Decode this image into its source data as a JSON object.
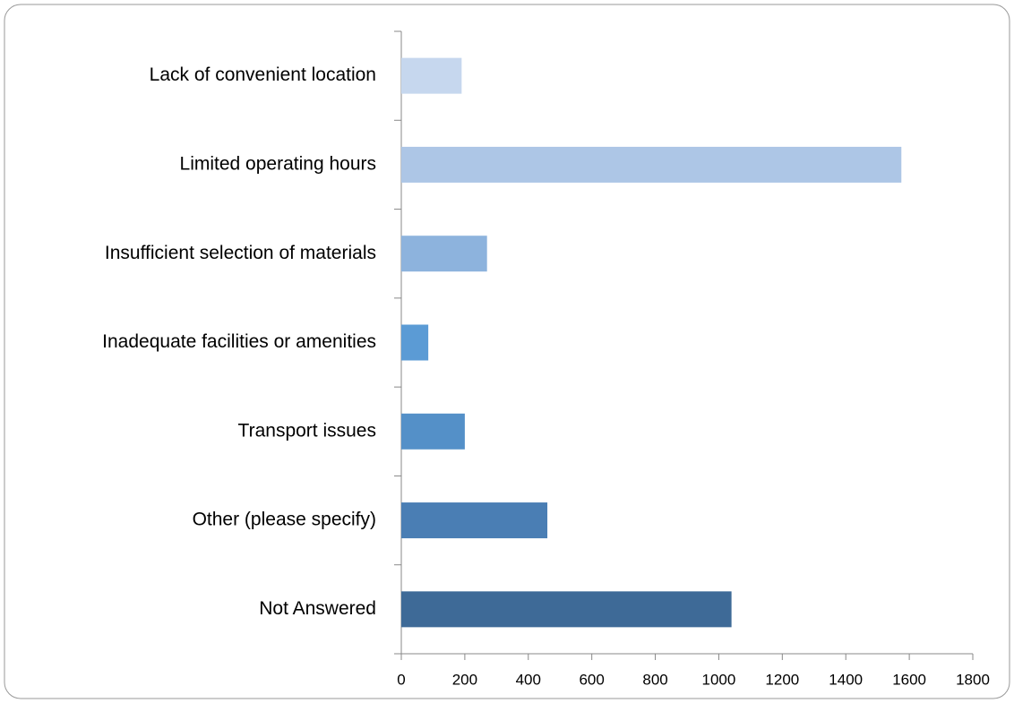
{
  "chart_data": {
    "type": "bar",
    "orientation": "horizontal",
    "categories": [
      "Lack of convenient location",
      "Limited operating hours",
      "Insufficient selection of materials",
      "Inadequate facilities or amenities",
      "Transport issues",
      "Other (please specify)",
      "Not Answered"
    ],
    "values": [
      190,
      1575,
      270,
      85,
      200,
      460,
      1040
    ],
    "colors": [
      "#c6d7ee",
      "#adc6e6",
      "#8db3dd",
      "#5b9bd5",
      "#5490c8",
      "#4a7eb4",
      "#3e6a97"
    ],
    "xlim": [
      0,
      1800
    ],
    "xticks": [
      0,
      200,
      400,
      600,
      800,
      1000,
      1200,
      1400,
      1600,
      1800
    ],
    "grid": false
  }
}
